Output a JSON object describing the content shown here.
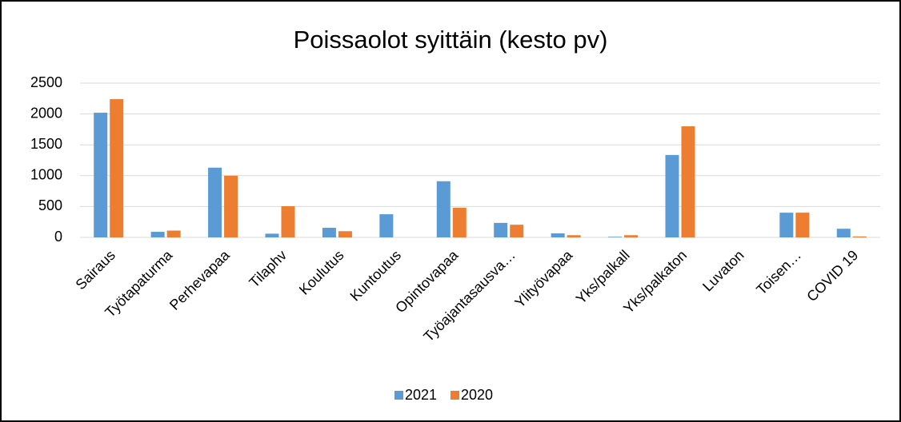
{
  "chart_data": {
    "type": "bar",
    "title": "Poissaolot syittäin (kesto pv)",
    "categories": [
      "Sairaus",
      "Työtapaturma",
      "Perhevapaa",
      "Tilaphv",
      "Koulutus",
      "Kuntoutus",
      "Opintovapaa",
      "Työajantasausva…",
      "Ylityövapaa",
      "Yks/palkall",
      "Yks/palkaton",
      "Luvaton",
      "Toisen…",
      "COVID 19"
    ],
    "series": [
      {
        "name": "2021",
        "color": "#5b9bd5",
        "values": [
          2020,
          90,
          1130,
          60,
          155,
          375,
          910,
          235,
          65,
          10,
          1335,
          0,
          400,
          140
        ]
      },
      {
        "name": "2020",
        "color": "#ed7d31",
        "values": [
          2240,
          110,
          1000,
          505,
          100,
          0,
          480,
          205,
          35,
          35,
          1800,
          0,
          400,
          15
        ]
      }
    ],
    "ylim": [
      0,
      2500
    ],
    "yticks": [
      0,
      500,
      1000,
      1500,
      2000,
      2500
    ],
    "grid": true,
    "legend": "bottom"
  }
}
